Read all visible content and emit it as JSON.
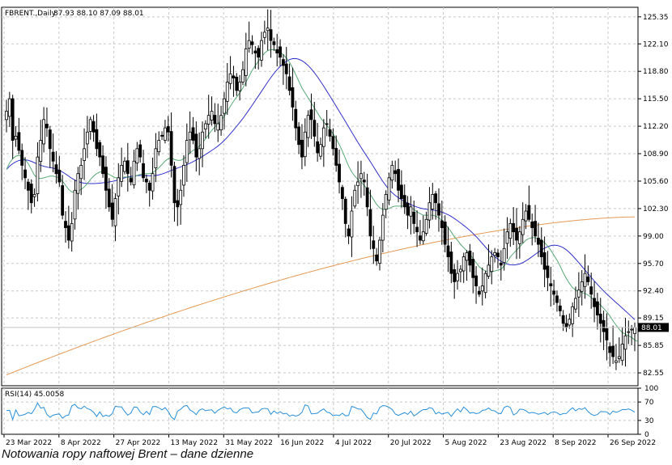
{
  "chart_data": {
    "type": "candlestick",
    "symbol_label": "FBRENT.,Daily",
    "ohlc_label": "87.93 88.10 87.09 88.01",
    "last_price_label": "88.01",
    "last_price": 88.01,
    "caption": "Notowania ropy naftowej Brent – dane dzienne",
    "ylim": [
      81.0,
      126.5
    ],
    "y_ticks": [
      "125.35",
      "122.10",
      "118.80",
      "115.50",
      "112.20",
      "108.90",
      "105.60",
      "102.30",
      "99.00",
      "95.70",
      "92.40",
      "89.15",
      "85.85",
      "82.55"
    ],
    "x_tick_labels": [
      "23 Mar 2022",
      "8 Apr 2022",
      "27 Apr 2022",
      "13 May 2022",
      "31 May 2022",
      "16 Jun 2022",
      "4 Jul 2022",
      "20 Jul 2022",
      "5 Aug 2022",
      "23 Aug 2022",
      "8 Sep 2022",
      "26 Sep 2022"
    ],
    "close": [
      114.0,
      115.5,
      110.5,
      111.0,
      109.3,
      107.5,
      106.0,
      104.5,
      103.0,
      104.0,
      108.5,
      110.5,
      113.0,
      112.0,
      109.5,
      108.0,
      106.5,
      105.5,
      101.5,
      100.0,
      98.5,
      100.5,
      104.5,
      106.5,
      107.5,
      109.5,
      111.5,
      113.0,
      111.5,
      109.5,
      108.5,
      106.5,
      104.5,
      102.5,
      101.0,
      103.5,
      106.0,
      107.5,
      108.0,
      106.5,
      105.5,
      108.0,
      109.5,
      108.5,
      106.0,
      105.5,
      104.5,
      106.5,
      109.5,
      110.5,
      111.0,
      112.0,
      111.5,
      107.5,
      103.0,
      102.5,
      104.5,
      107.5,
      110.5,
      111.5,
      110.5,
      108.5,
      109.5,
      111.5,
      112.5,
      113.5,
      114.0,
      112.5,
      112.5,
      113.5,
      115.5,
      117.5,
      118.5,
      118.0,
      116.5,
      117.5,
      119.0,
      121.5,
      122.5,
      122.0,
      121.0,
      120.5,
      122.5,
      123.5,
      124.0,
      122.5,
      122.0,
      121.0,
      120.5,
      119.5,
      118.5,
      116.5,
      114.5,
      112.0,
      110.0,
      108.5,
      111.5,
      113.5,
      113.0,
      111.0,
      109.0,
      110.0,
      112.0,
      112.5,
      111.0,
      109.5,
      107.5,
      105.5,
      103.5,
      100.5,
      99.0,
      102.0,
      104.5,
      105.5,
      106.5,
      105.5,
      102.5,
      99.0,
      97.5,
      96.0,
      98.5,
      101.5,
      104.0,
      106.0,
      107.5,
      106.5,
      104.5,
      103.5,
      102.5,
      101.5,
      102.5,
      100.5,
      99.5,
      98.5,
      99.5,
      101.0,
      103.0,
      104.0,
      103.0,
      101.5,
      100.0,
      98.0,
      96.5,
      94.5,
      93.5,
      94.5,
      95.0,
      96.5,
      97.0,
      95.5,
      94.0,
      93.0,
      92.0,
      93.0,
      94.5,
      95.5,
      96.5,
      97.0,
      96.5,
      95.5,
      97.5,
      99.5,
      100.5,
      99.5,
      98.5,
      99.5,
      101.0,
      102.0,
      101.0,
      100.0,
      99.0,
      98.0,
      96.5,
      95.0,
      94.0,
      93.0,
      92.0,
      91.0,
      90.0,
      88.5,
      88.0,
      89.0,
      90.5,
      91.5,
      92.5,
      93.5,
      94.5,
      93.5,
      92.0,
      90.5,
      89.5,
      88.5,
      87.5,
      86.5,
      85.0,
      84.5,
      84.0,
      84.5,
      86.0,
      87.0,
      87.5,
      87.8,
      88.01
    ],
    "sma_fast": [
      107.0,
      107.8,
      108.3,
      108.6,
      108.7,
      108.5,
      108.2,
      107.7,
      107.0,
      106.3,
      106.0,
      105.9,
      106.0,
      106.1,
      106.2,
      106.2,
      106.1,
      106.0,
      105.6,
      105.1,
      104.6,
      104.3,
      104.3,
      104.4,
      104.6,
      104.9,
      105.3,
      105.8,
      106.2,
      106.5,
      106.7,
      106.7,
      106.6,
      106.4,
      106.2,
      106.0,
      106.0,
      106.0,
      106.1,
      106.1,
      106.0,
      106.1,
      106.3,
      106.4,
      106.5,
      106.5,
      106.5,
      106.6,
      106.9,
      107.2,
      107.6,
      108.0,
      108.3,
      108.4,
      108.2,
      108.1,
      108.1,
      108.3,
      108.6,
      109.0,
      109.3,
      109.5,
      109.8,
      110.2,
      110.7,
      111.2,
      111.7,
      112.1,
      112.5,
      112.9,
      113.4,
      114.0,
      114.6,
      115.2,
      115.7,
      116.2,
      116.8,
      117.5,
      118.2,
      118.9,
      119.5,
      120.0,
      120.5,
      121.0,
      121.3,
      121.4,
      121.4,
      121.3,
      121.1,
      120.8,
      120.4,
      119.9,
      119.2,
      118.4,
      117.6,
      116.8,
      116.2,
      115.6,
      115.0,
      114.4,
      113.8,
      113.2,
      112.7,
      112.3,
      111.8,
      111.3,
      110.7,
      110.0,
      109.2,
      108.3,
      107.4,
      106.7,
      106.2,
      105.8,
      105.5,
      105.1,
      104.6,
      104.0,
      103.4,
      102.8,
      102.4,
      102.2,
      102.2,
      102.3,
      102.5,
      102.6,
      102.6,
      102.6,
      102.6,
      102.5,
      102.4,
      102.2,
      101.9,
      101.7,
      101.5,
      101.5,
      101.5,
      101.5,
      101.4,
      101.2,
      100.9,
      100.5,
      100.0,
      99.5,
      98.9,
      98.5,
      98.0,
      97.6,
      97.2,
      96.8,
      96.3,
      95.8,
      95.3,
      95.0,
      94.8,
      94.7,
      94.7,
      94.8,
      94.9,
      95.0,
      95.4,
      95.9,
      96.5,
      96.9,
      97.3,
      97.7,
      98.1,
      98.5,
      98.7,
      98.8,
      98.8,
      98.7,
      98.5,
      98.2,
      97.8,
      97.3,
      96.7,
      96.1,
      95.4,
      94.6,
      93.9,
      93.3,
      92.8,
      92.5,
      92.3,
      92.2,
      92.1,
      91.9,
      91.6,
      91.3,
      91.0,
      90.7,
      90.3,
      89.9,
      89.4,
      88.8,
      88.3,
      87.8,
      87.4,
      87.2,
      87.0,
      86.8,
      86.5,
      86.3
    ]
  }
}
